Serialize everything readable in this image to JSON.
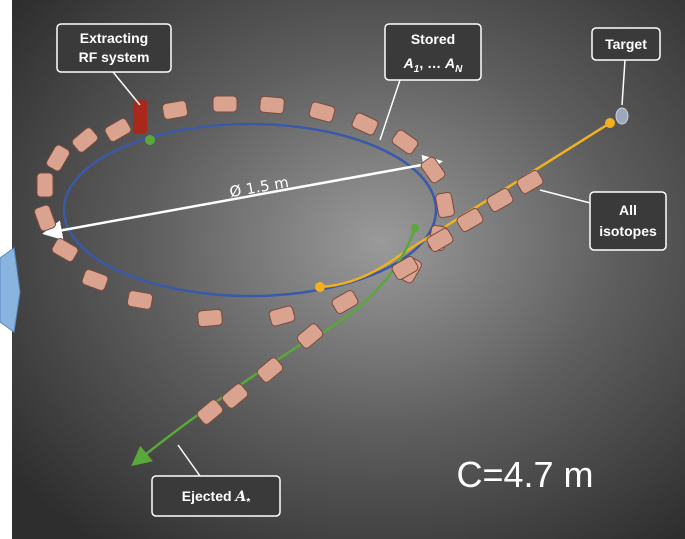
{
  "labels": {
    "extracting": {
      "line1": "Extracting",
      "line2": "RF system"
    },
    "stored": {
      "line1": "Stored",
      "symbol": "A",
      "sub_first": "1",
      "separator": ", … ",
      "sub_last": "N"
    },
    "target": "Target",
    "isotopes": {
      "line1": "All",
      "line2": "isotopes"
    },
    "ejected": {
      "text": "Ejected ",
      "symbol": "A",
      "sub": "*"
    },
    "diameter": "Ø 1.5 m",
    "circumference": "C=4.7 m"
  }
}
